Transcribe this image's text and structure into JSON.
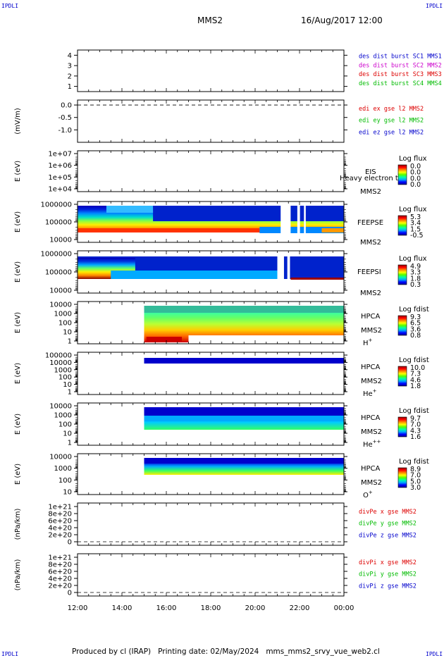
{
  "corner_label": "IPDLI",
  "header": {
    "spacecraft": "MMS2",
    "datetime": "16/Aug/2017 12:00"
  },
  "footer": {
    "produced_by": "Produced by cl (IRAP)",
    "printing_date": "Printing date: 02/May/2024",
    "filename": "mms_mms2_srvy_vue_web2.cl"
  },
  "time_axis": {
    "ticks": [
      "12:00",
      "14:00",
      "16:00",
      "18:00",
      "20:00",
      "22:00",
      "00:00"
    ]
  },
  "colors": {
    "blue": "#0000cc",
    "magenta": "#cc00cc",
    "red": "#dd0000",
    "green": "#00bb00"
  },
  "chart_data": [
    {
      "id": "dist",
      "type": "line",
      "y_ticks": [
        "1",
        "2",
        "3",
        "4"
      ],
      "ylim": [
        0.5,
        4.5
      ],
      "legend": [
        {
          "text": "des dist burst SC1 MMS1",
          "color": "#0000cc"
        },
        {
          "text": "des dist burst SC2 MMS2",
          "color": "#cc00cc"
        },
        {
          "text": "des dist burst SC3 MMS3",
          "color": "#dd0000"
        },
        {
          "text": "des dist burst SC4 MMS4",
          "color": "#00bb00"
        }
      ]
    },
    {
      "id": "edi",
      "type": "line",
      "ylabel": "(mV/m)",
      "y_ticks": [
        "0.0",
        "-0.5",
        "-1.0"
      ],
      "ylim": [
        -1.5,
        0.2
      ],
      "dashed_zero": true,
      "legend": [
        {
          "text": "edi ex gse l2 MMS2",
          "color": "#dd0000"
        },
        {
          "text": "edi ey gse l2 MMS2",
          "color": "#00bb00"
        },
        {
          "text": "edi ez gse l2 MMS2",
          "color": "#0000cc"
        }
      ]
    },
    {
      "id": "eis",
      "type": "heatmap",
      "ylabel": "E (eV)",
      "y_ticks": [
        "1e+07",
        "1e+06",
        "1e+05",
        "1e+04"
      ],
      "instrument": "EIS",
      "spacecraft": "MMS2",
      "note": "Heavy electron to",
      "colorbar": {
        "title": "Log flux",
        "labels": [
          "0.0",
          "0.0",
          "0.0",
          "0.0"
        ]
      }
    },
    {
      "id": "feepse",
      "type": "heatmap",
      "ylabel": "E (eV)",
      "y_ticks": [
        "1000000",
        "100000",
        "10000"
      ],
      "instrument": "FEEPSE",
      "spacecraft": "MMS2",
      "colorbar": {
        "title": "Log flux",
        "labels": [
          "5.3",
          "3.4",
          "1.5",
          "-0.5"
        ]
      }
    },
    {
      "id": "feepsi",
      "type": "heatmap",
      "ylabel": "E (eV)",
      "y_ticks": [
        "1000000",
        "100000",
        "10000"
      ],
      "instrument": "FEEPSI",
      "spacecraft": "MMS2",
      "colorbar": {
        "title": "Log flux",
        "labels": [
          "4.9",
          "3.3",
          "1.8",
          "0.3"
        ]
      }
    },
    {
      "id": "hpca_h",
      "type": "heatmap",
      "ylabel": "E (eV)",
      "y_ticks": [
        "10000",
        "1000",
        "100",
        "10",
        "1"
      ],
      "instrument": "HPCA",
      "spacecraft": "MMS2",
      "species": "H",
      "charge": "+",
      "colorbar": {
        "title": "Log fdist",
        "labels": [
          "9.3",
          "6.5",
          "3.6",
          "0.8"
        ]
      }
    },
    {
      "id": "hpca_he",
      "type": "heatmap",
      "ylabel": "E (eV)",
      "y_ticks": [
        "100000",
        "10000",
        "1000",
        "100",
        "10",
        "1"
      ],
      "instrument": "HPCA",
      "spacecraft": "MMS2",
      "species": "He",
      "charge": "+",
      "colorbar": {
        "title": "Log fdist",
        "labels": [
          "10.0",
          "7.3",
          "4.6",
          "1.8"
        ]
      }
    },
    {
      "id": "hpca_he2",
      "type": "heatmap",
      "ylabel": "E (eV)",
      "y_ticks": [
        "10000",
        "1000",
        "100",
        "10",
        "1"
      ],
      "instrument": "HPCA",
      "spacecraft": "MMS2",
      "species": "He",
      "charge": "++",
      "colorbar": {
        "title": "Log fdist",
        "labels": [
          "9.7",
          "7.0",
          "4.3",
          "1.6"
        ]
      }
    },
    {
      "id": "hpca_o",
      "type": "heatmap",
      "ylabel": "E (eV)",
      "y_ticks": [
        "10000",
        "1000",
        "100",
        "10"
      ],
      "instrument": "HPCA",
      "spacecraft": "MMS2",
      "species": "O",
      "charge": "+",
      "colorbar": {
        "title": "Log fdist",
        "labels": [
          "8.9",
          "7.0",
          "5.0",
          "3.0"
        ]
      }
    },
    {
      "id": "divpe",
      "type": "line",
      "ylabel": "(nPa/km)",
      "y_ticks": [
        "1e+21",
        "8e+20",
        "6e+20",
        "4e+20",
        "2e+20",
        "0"
      ],
      "ylim": [
        -0.1,
        1.1
      ],
      "dashed_zero": true,
      "legend": [
        {
          "text": "divPe x gse MMS2",
          "color": "#dd0000"
        },
        {
          "text": "divPe y gse MMS2",
          "color": "#00bb00"
        },
        {
          "text": "divPe z gse MMS2",
          "color": "#0000cc"
        }
      ]
    },
    {
      "id": "divpi",
      "type": "line",
      "ylabel": "(nPa/km)",
      "y_ticks": [
        "1e+21",
        "8e+20",
        "6e+20",
        "4e+20",
        "2e+20",
        "0"
      ],
      "ylim": [
        -0.1,
        1.1
      ],
      "dashed_zero": true,
      "legend": [
        {
          "text": "divPi x gse MMS2",
          "color": "#dd0000"
        },
        {
          "text": "divPi y gse MMS2",
          "color": "#00bb00"
        },
        {
          "text": "divPi z gse MMS2",
          "color": "#0000cc"
        }
      ]
    }
  ]
}
